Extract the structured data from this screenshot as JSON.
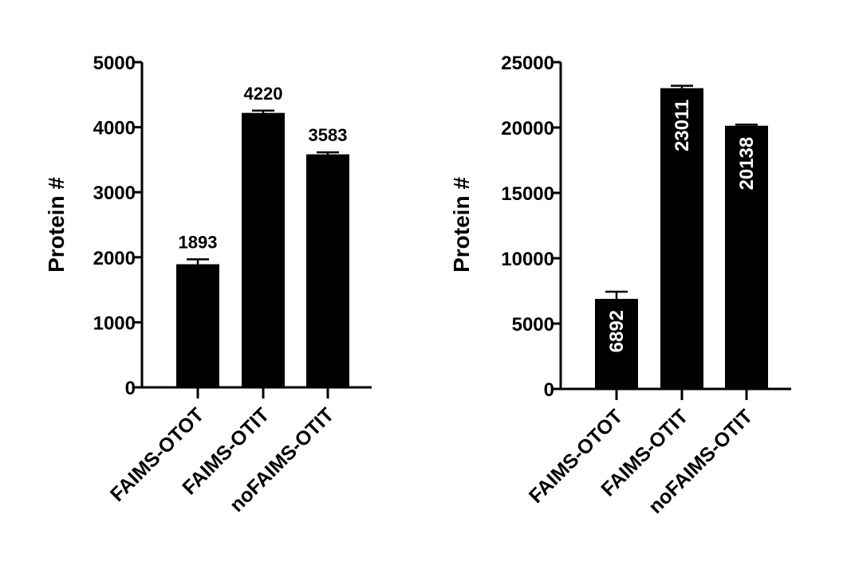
{
  "chart_data": [
    {
      "type": "bar",
      "categories": [
        "FAIMS-OTOT",
        "FAIMS-OTIT",
        "noFAIMS-OTIT"
      ],
      "values": [
        1893,
        4220,
        3583
      ],
      "errors": [
        75,
        35,
        30
      ],
      "data_labels": [
        "1893",
        "4220",
        "3583"
      ],
      "data_label_position": "above",
      "ylabel": "Protein #",
      "ylim": [
        0,
        5000
      ],
      "yticks": [
        0,
        1000,
        2000,
        3000,
        4000,
        5000
      ],
      "ytick_labels": [
        "0",
        "1000",
        "2000",
        "3000",
        "4000",
        "5000"
      ],
      "bar_color": "#000000",
      "grid": false
    },
    {
      "type": "bar",
      "categories": [
        "FAIMS-OTOT",
        "FAIMS-OTIT",
        "noFAIMS-OTIT"
      ],
      "values": [
        6892,
        23011,
        20138
      ],
      "errors": [
        550,
        180,
        80
      ],
      "data_labels": [
        "6892",
        "23011",
        "20138"
      ],
      "data_label_position": "inside-vertical",
      "ylabel": "Protein #",
      "ylim": [
        0,
        25000
      ],
      "yticks": [
        0,
        5000,
        10000,
        15000,
        20000,
        25000
      ],
      "ytick_labels": [
        "0",
        "5000",
        "10000",
        "15000",
        "20000",
        "25000"
      ],
      "bar_color": "#000000",
      "grid": false
    }
  ]
}
